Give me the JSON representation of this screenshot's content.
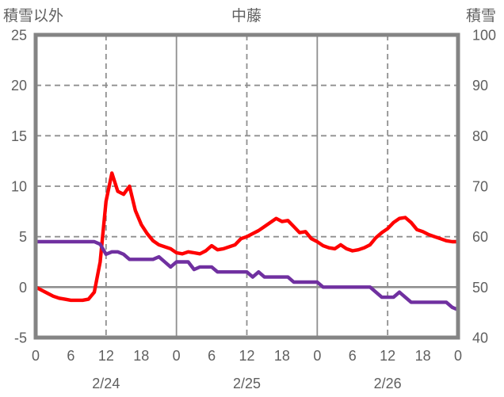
{
  "chart_data": {
    "type": "line",
    "title": "中藤",
    "left_axis": {
      "label": "積雪以外",
      "min": -5,
      "max": 25,
      "ticks": [
        25,
        20,
        15,
        10,
        5,
        0,
        -5
      ]
    },
    "right_axis": {
      "label": "積雪",
      "min": 40,
      "max": 100,
      "ticks": [
        100,
        90,
        80,
        70,
        60,
        50,
        40
      ]
    },
    "x_axis": {
      "hours_total": 72,
      "tick_interval_hours": 6,
      "tick_labels": [
        "0",
        "6",
        "12",
        "18",
        "0",
        "6",
        "12",
        "18",
        "0",
        "6",
        "12",
        "18",
        "0"
      ],
      "date_labels": [
        {
          "text": "2/24",
          "hour": 12
        },
        {
          "text": "2/25",
          "hour": 36
        },
        {
          "text": "2/26",
          "hour": 60
        }
      ],
      "grid_dashed_hours": [
        12,
        36,
        60
      ],
      "grid_solid_hours": [
        24,
        48
      ]
    },
    "grid": {
      "h_dashed_left_values": [
        20,
        15,
        10,
        5
      ],
      "h_solid_left_values": [
        0
      ]
    },
    "series": [
      {
        "name": "積雪以外",
        "axis": "left",
        "color": "#ff0000",
        "start_hour": 0,
        "step_hours": 1,
        "values": [
          0,
          -0.3,
          -0.6,
          -0.9,
          -1.1,
          -1.2,
          -1.3,
          -1.3,
          -1.3,
          -1.2,
          -0.5,
          2.5,
          8.5,
          11.3,
          9.5,
          9.2,
          10,
          7.6,
          6.2,
          5.3,
          4.6,
          4.2,
          4,
          3.8,
          3.4,
          3.3,
          3.5,
          3.4,
          3.3,
          3.6,
          4.1,
          3.7,
          3.8,
          4,
          4.2,
          4.8,
          5,
          5.3,
          5.6,
          6,
          6.4,
          6.8,
          6.5,
          6.6,
          6,
          5.4,
          5.5,
          4.8,
          4.5,
          4.1,
          3.9,
          3.8,
          4.2,
          3.8,
          3.6,
          3.7,
          3.9,
          4.2,
          4.9,
          5.4,
          5.8,
          6.4,
          6.8,
          6.9,
          6.4,
          5.7,
          5.5,
          5.2,
          5,
          4.8,
          4.6,
          4.5,
          4.5
        ]
      },
      {
        "name": "積雪",
        "axis": "right",
        "color": "#7030a0",
        "start_hour": 0,
        "step_hours": 1,
        "values": [
          59,
          59,
          59,
          59,
          59,
          59,
          59,
          59,
          59,
          59,
          59,
          58.5,
          56.5,
          57,
          57,
          56.5,
          55.5,
          55.5,
          55.5,
          55.5,
          55.5,
          56,
          55,
          54,
          55,
          55,
          55,
          53.5,
          54,
          54,
          54,
          53,
          53,
          53,
          53,
          53,
          53,
          52,
          53,
          52,
          52,
          52,
          52,
          52,
          51,
          51,
          51,
          51,
          51,
          50,
          50,
          50,
          50,
          50,
          50,
          50,
          50,
          50,
          49,
          48,
          48,
          48,
          49,
          48,
          47,
          47,
          47,
          47,
          47,
          47,
          47,
          46,
          45.5
        ]
      }
    ],
    "style": {
      "frame_color": "#848484",
      "grid_color": "#8f8f8f",
      "text_color": "#5f5f5f",
      "background": "#ffffff"
    }
  }
}
